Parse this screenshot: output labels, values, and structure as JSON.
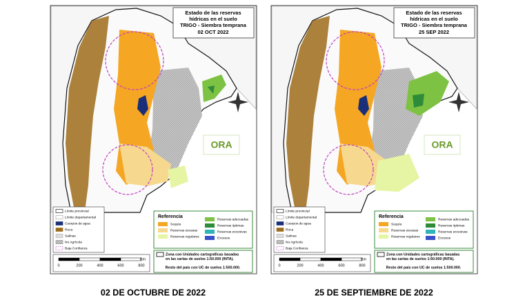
{
  "panels": [
    {
      "title": [
        "Estado de las reservas",
        "hídricas en el suelo"
      ],
      "crop": "TRIGO - Siembra temprana",
      "date": "02 OCT 2022",
      "logo": "ORA",
      "legend": [
        "Límite provincial",
        "Límite departamental",
        "Cuerpos de agua",
        "Roca",
        "Salinas",
        "No Agrícola",
        "Baja Confianza"
      ],
      "scale": {
        "labels": [
          "0",
          "200",
          "400",
          "600",
          "800"
        ],
        "unit": "Km"
      },
      "reference": {
        "title": "Referencia",
        "items": [
          "Sequía",
          "Reservas escasas",
          "Reservas regulares",
          "Reservas adecuadas",
          "Reservas óptimas",
          "Reservas excesivas",
          "Excesos"
        ]
      },
      "note": {
        "lines": [
          "Zona con Unidades cartográficas basadas",
          "en las cartas de suelos 1:50.000 (INTA)."
        ],
        "rest": "Resto del país con UC de suelos 1:500.000."
      },
      "caption": "02 DE OCTUBRE DE 2022"
    },
    {
      "title": [
        "Estado de las reservas",
        "hídricas en el suelo"
      ],
      "crop": "TRIGO - Siembra temprana",
      "date": "25 SEP 2022",
      "logo": "ORA",
      "legend": [
        "Límite provincial",
        "Límite departamental",
        "Cuerpos de agua",
        "Roca",
        "Salinas",
        "No Agrícola",
        "Baja Confianza"
      ],
      "scale": {
        "labels": [
          "0",
          "200",
          "400",
          "600",
          "800"
        ],
        "unit": "Km"
      },
      "reference": {
        "title": "Referencia",
        "items": [
          "Sequía",
          "Reservas escasas",
          "Reservas regulares",
          "Reservas adecuadas",
          "Reservas óptimas",
          "Reservas excesivas",
          "Excesos"
        ]
      },
      "note": {
        "lines": [
          "Zona con Unidades cartográficas basadas",
          "en las cartas de suelos 1:50.000 (INTA)."
        ],
        "rest": "Resto del país con UC de suelos 1:500.000."
      },
      "caption": "25 DE SEPTIEMBRE DE 2022"
    }
  ]
}
